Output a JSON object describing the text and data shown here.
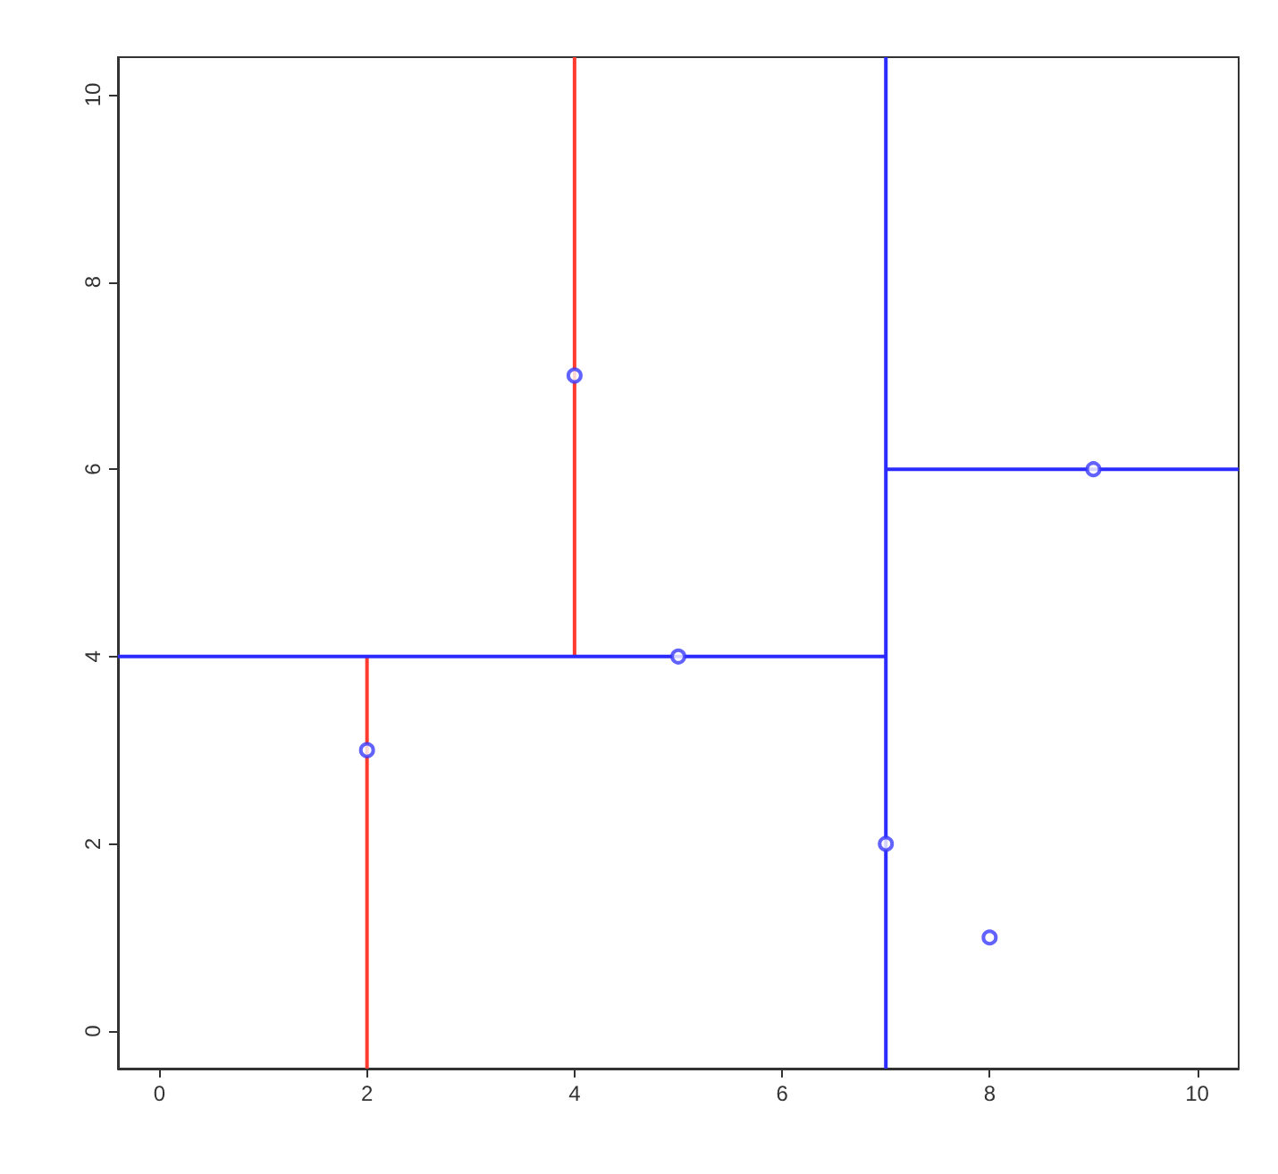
{
  "chart_data": {
    "type": "scatter",
    "xlim": [
      -0.4,
      10.4
    ],
    "ylim": [
      -0.4,
      10.4
    ],
    "xticks": [
      0,
      2,
      4,
      6,
      8,
      10
    ],
    "yticks": [
      0,
      2,
      4,
      6,
      8,
      10
    ],
    "grid": false,
    "series": [
      {
        "type": "line",
        "color": "#ff3b2f",
        "marker": "none",
        "x": [
          2,
          2
        ],
        "values": [
          -0.4,
          4
        ]
      },
      {
        "type": "line",
        "color": "#ff3b2f",
        "marker": "none",
        "x": [
          4,
          4
        ],
        "values": [
          4,
          10.4
        ]
      },
      {
        "type": "line",
        "color": "#2b2bff",
        "marker": "none",
        "x": [
          -0.4,
          7
        ],
        "values": [
          4,
          4
        ]
      },
      {
        "type": "line",
        "color": "#2b2bff",
        "marker": "none",
        "x": [
          7,
          7
        ],
        "values": [
          -0.4,
          10.4
        ]
      },
      {
        "type": "line",
        "color": "#2b2bff",
        "marker": "none",
        "x": [
          7,
          10.4
        ],
        "values": [
          6,
          6
        ]
      },
      {
        "color": "#3b3bff",
        "marker": "circle",
        "x": [
          2,
          4,
          5,
          7,
          8,
          9
        ],
        "values": [
          3,
          7,
          4,
          2,
          1,
          6
        ]
      }
    ]
  }
}
